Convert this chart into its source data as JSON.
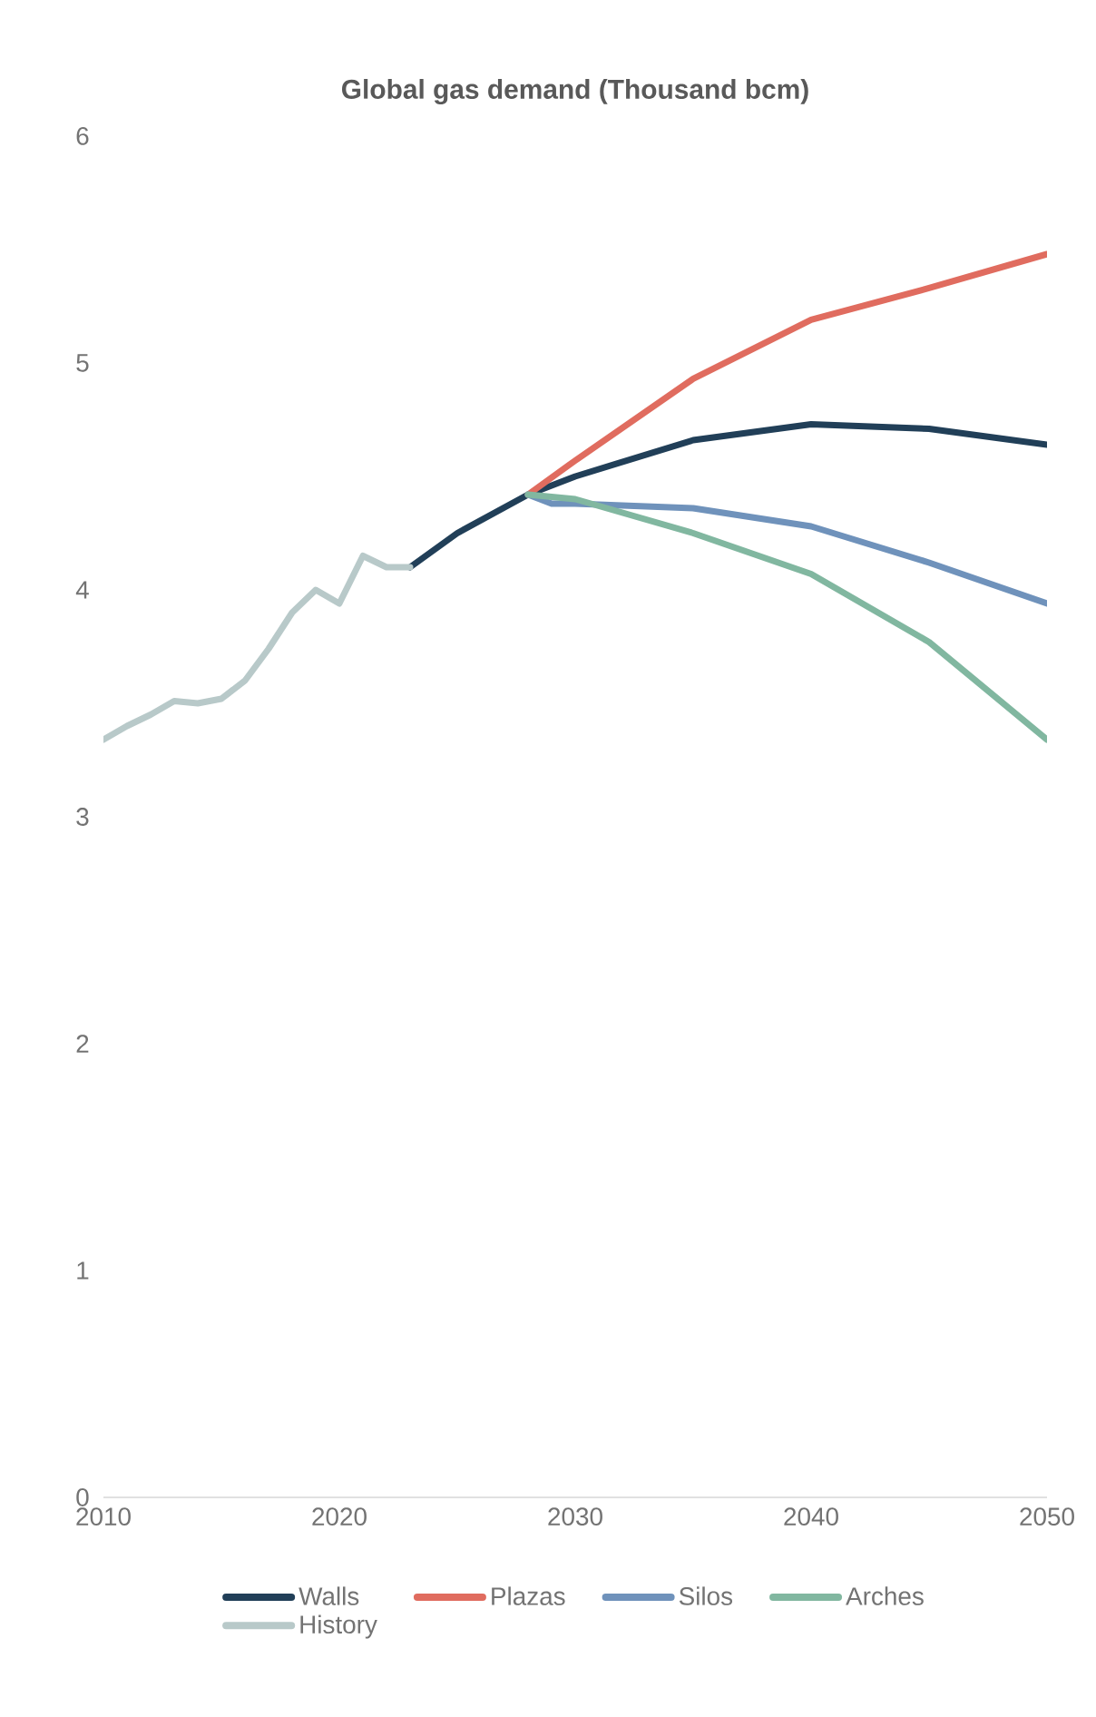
{
  "chart_data": {
    "type": "line",
    "title": "Global gas demand (Thousand bcm)",
    "xlim": [
      2010,
      2050
    ],
    "xticks": [
      2010,
      2020,
      2030,
      2040,
      2050
    ],
    "ylim": [
      0,
      6
    ],
    "yticks": [
      0,
      1,
      2,
      3,
      4,
      5,
      6
    ],
    "grid": false,
    "legend": "bottom",
    "line_style": "solid",
    "marker": "none",
    "series": [
      {
        "name": "Walls",
        "color": "#213f58",
        "x": [
          2023,
          2025,
          2028,
          2030,
          2035,
          2040,
          2045,
          2050
        ],
        "values": [
          4.1,
          4.25,
          4.42,
          4.5,
          4.66,
          4.73,
          4.71,
          4.64
        ]
      },
      {
        "name": "Plazas",
        "color": "#e06c5f",
        "x": [
          2028,
          2030,
          2035,
          2040,
          2045,
          2050
        ],
        "values": [
          4.42,
          4.57,
          4.93,
          5.19,
          5.33,
          5.48
        ]
      },
      {
        "name": "Silos",
        "color": "#6f92bb",
        "x": [
          2028,
          2029,
          2030,
          2035,
          2040,
          2045,
          2050
        ],
        "values": [
          4.42,
          4.38,
          4.38,
          4.36,
          4.28,
          4.12,
          3.94
        ]
      },
      {
        "name": "Arches",
        "color": "#81b7a0",
        "x": [
          2028,
          2030,
          2035,
          2040,
          2045,
          2050
        ],
        "values": [
          4.42,
          4.4,
          4.25,
          4.07,
          3.77,
          3.34
        ]
      },
      {
        "name": "History",
        "color": "#b8c9c9",
        "x": [
          2010,
          2011,
          2012,
          2013,
          2014,
          2015,
          2016,
          2017,
          2018,
          2019,
          2020,
          2021,
          2022,
          2023
        ],
        "values": [
          3.34,
          3.4,
          3.45,
          3.51,
          3.5,
          3.52,
          3.6,
          3.74,
          3.9,
          4.0,
          3.94,
          4.15,
          4.1,
          4.1
        ]
      }
    ]
  }
}
